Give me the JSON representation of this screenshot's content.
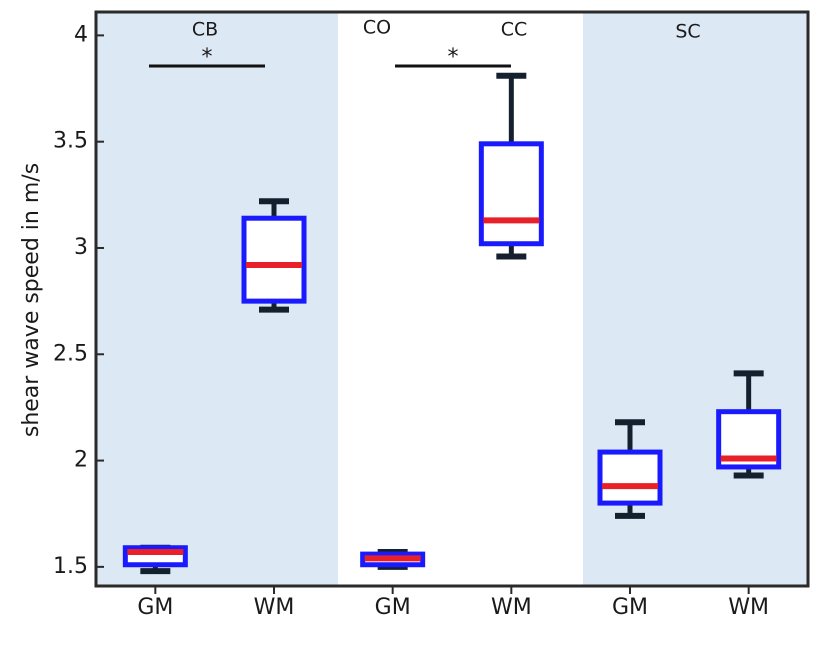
{
  "chart_data": {
    "type": "box",
    "ylabel": "shear wave speed in m/s",
    "categories": [
      "GM",
      "WM",
      "GM",
      "WM",
      "GM",
      "WM"
    ],
    "boxes": [
      {
        "min": 1.48,
        "q1": 1.51,
        "median": 1.57,
        "q3": 1.59,
        "max": 1.59
      },
      {
        "min": 2.71,
        "q1": 2.75,
        "median": 2.92,
        "q3": 3.14,
        "max": 3.22
      },
      {
        "min": 1.5,
        "q1": 1.51,
        "median": 1.54,
        "q3": 1.56,
        "max": 1.57
      },
      {
        "min": 2.96,
        "q1": 3.02,
        "median": 3.13,
        "q3": 3.49,
        "max": 3.81
      },
      {
        "min": 1.74,
        "q1": 1.8,
        "median": 1.88,
        "q3": 2.04,
        "max": 2.18
      },
      {
        "min": 1.93,
        "q1": 1.97,
        "median": 2.01,
        "q3": 2.23,
        "max": 2.41
      }
    ],
    "box_color": "#1a1aff",
    "median_color": "#e8202a",
    "whisker_color": "#15202e",
    "group_labels": [
      "CB",
      "CO",
      "CC",
      "SC"
    ],
    "significance": [
      "*",
      "*"
    ],
    "ylim": [
      1.41,
      4.11
    ],
    "yticks": [
      1.5,
      2,
      2.5,
      3,
      3.5,
      4
    ]
  }
}
